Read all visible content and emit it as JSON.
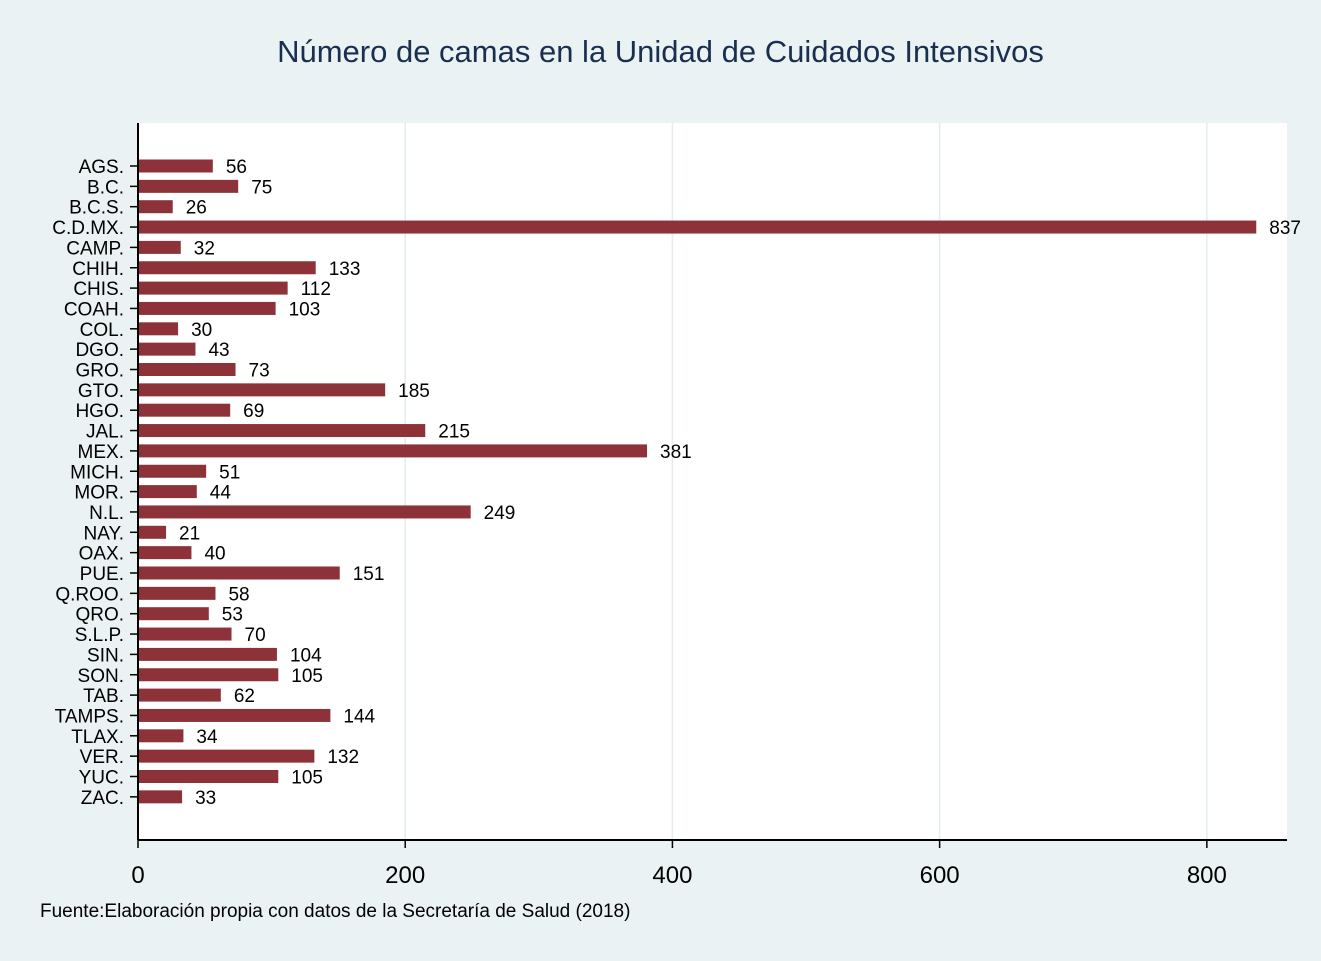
{
  "chart_data": {
    "type": "bar",
    "orientation": "horizontal",
    "title": "Número de camas en la Unidad de Cuidados Intensivos",
    "note": "Fuente:Elaboración propia con datos de la Secretaría de Salud (2018)",
    "xlabel": "",
    "ylabel": "",
    "xlim": [
      0,
      860
    ],
    "x_ticks": [
      0,
      200,
      400,
      600,
      800
    ],
    "grid": true,
    "bar_color": "#8e3239",
    "categories": [
      "AGS.",
      "B.C.",
      "B.C.S.",
      "C.D.MX.",
      "CAMP.",
      "CHIH.",
      "CHIS.",
      "COAH.",
      "COL.",
      "DGO.",
      "GRO.",
      "GTO.",
      "HGO.",
      "JAL.",
      "MEX.",
      "MICH.",
      "MOR.",
      "N.L.",
      "NAY.",
      "OAX.",
      "PUE.",
      "Q.ROO.",
      "QRO.",
      "S.L.P.",
      "SIN.",
      "SON.",
      "TAB.",
      "TAMPS.",
      "TLAX.",
      "VER.",
      "YUC.",
      "ZAC."
    ],
    "values": [
      56,
      75,
      26,
      837,
      32,
      133,
      112,
      103,
      30,
      43,
      73,
      185,
      69,
      215,
      381,
      51,
      44,
      249,
      21,
      40,
      151,
      58,
      53,
      70,
      104,
      105,
      62,
      144,
      34,
      132,
      105,
      33
    ]
  },
  "colors": {
    "background": "#eaf2f3",
    "plot_background": "#ffffff",
    "gridline": "#e3ecee",
    "title": "#1a2e4f"
  }
}
